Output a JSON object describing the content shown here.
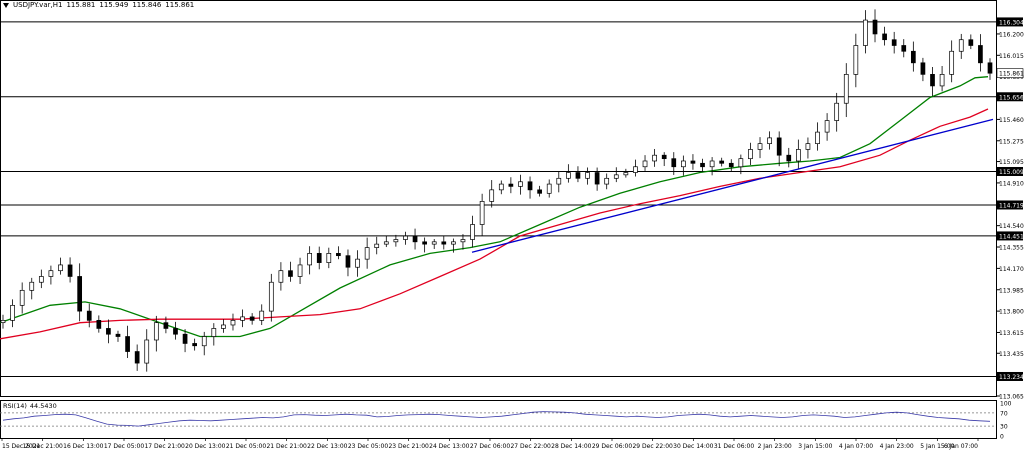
{
  "header": {
    "symbol": "USDJPY.var,H1",
    "open": "115.881",
    "high": "115.949",
    "low": "115.846",
    "close": "115.861"
  },
  "rsi_header": {
    "label": "RSI(14)",
    "value": "44.5430"
  },
  "colors": {
    "ma_fast": "#008000",
    "ma_slow": "#e00020",
    "trendline": "#0000cc",
    "rsi": "#3a3aa8",
    "candle": "#000000",
    "level_line": "#000000",
    "highlight_label_bg": "#000000",
    "highlight_label_fg": "#ffffff"
  },
  "chart_data": {
    "type": "candlestick",
    "symbol": "USDJPY.var,H1",
    "y_ticks": [
      "116.304",
      "116.200",
      "116.015",
      "115.830",
      "115.656",
      "115.460",
      "115.275",
      "115.095",
      "115.009",
      "114.910",
      "114.719",
      "114.540",
      "114.451",
      "114.355",
      "114.170",
      "113.985",
      "113.800",
      "113.615",
      "113.435",
      "113.234",
      "113.065"
    ],
    "ylim": [
      113.065,
      116.39
    ],
    "x_ticks": [
      "15 Dec 2021",
      "15 Dec 21:00",
      "16 Dec 13:00",
      "17 Dec 05:00",
      "17 Dec 21:00",
      "20 Dec 13:00",
      "21 Dec 05:00",
      "21 Dec 21:00",
      "22 Dec 13:00",
      "23 Dec 05:00",
      "23 Dec 21:00",
      "24 Dec 13:00",
      "27 Dec 06:00",
      "27 Dec 22:00",
      "28 Dec 14:00",
      "29 Dec 06:00",
      "29 Dec 22:00",
      "30 Dec 14:00",
      "31 Dec 06:00",
      "2 Jan 23:00",
      "3 Jan 15:00",
      "4 Jan 07:00",
      "4 Jan 23:00",
      "5 Jan 15:00",
      "6 Jan 07:00"
    ],
    "horizontal_levels": [
      116.304,
      115.656,
      115.009,
      114.719,
      114.451,
      113.234
    ],
    "current_price": 115.861,
    "close_path": [
      113.72,
      113.85,
      113.98,
      114.05,
      114.1,
      114.15,
      114.2,
      114.1,
      113.8,
      113.72,
      113.65,
      113.6,
      113.58,
      113.45,
      113.35,
      113.55,
      113.7,
      113.65,
      113.6,
      113.52,
      113.5,
      113.58,
      113.65,
      113.68,
      113.72,
      113.75,
      113.72,
      113.8,
      114.05,
      114.15,
      114.1,
      114.2,
      114.3,
      114.22,
      114.3,
      114.28,
      114.18,
      114.25,
      114.35,
      114.38,
      114.4,
      114.42,
      114.45,
      114.4,
      114.38,
      114.4,
      114.38,
      114.4,
      114.42,
      114.55,
      114.75,
      114.85,
      114.9,
      114.88,
      114.92,
      114.85,
      114.82,
      114.9,
      114.95,
      115.0,
      114.95,
      115.0,
      114.9,
      114.95,
      114.98,
      115.0,
      115.05,
      115.1,
      115.15,
      115.12,
      115.05,
      115.1,
      115.08,
      115.05,
      115.1,
      115.08,
      115.05,
      115.12,
      115.2,
      115.25,
      115.3,
      115.15,
      115.1,
      115.2,
      115.25,
      115.35,
      115.45,
      115.6,
      115.85,
      116.1,
      116.32,
      116.2,
      116.15,
      116.1,
      116.05,
      115.95,
      115.85,
      115.75,
      115.85,
      116.05,
      116.15,
      116.1,
      115.95,
      115.86
    ],
    "series": [
      {
        "name": "MA",
        "points": [
          [
            0,
            113.7
          ],
          [
            50,
            113.85
          ],
          [
            85,
            113.88
          ],
          [
            120,
            113.82
          ],
          [
            160,
            113.7
          ],
          [
            200,
            113.58
          ],
          [
            240,
            113.58
          ],
          [
            270,
            113.65
          ],
          [
            300,
            113.8
          ],
          [
            340,
            114.0
          ],
          [
            390,
            114.2
          ],
          [
            430,
            114.3
          ],
          [
            470,
            114.35
          ],
          [
            500,
            114.4
          ],
          [
            540,
            114.55
          ],
          [
            580,
            114.7
          ],
          [
            620,
            114.82
          ],
          [
            660,
            114.92
          ],
          [
            700,
            115.0
          ],
          [
            740,
            115.05
          ],
          [
            780,
            115.08
          ],
          [
            810,
            115.1
          ],
          [
            840,
            115.13
          ],
          [
            870,
            115.25
          ],
          [
            900,
            115.45
          ],
          [
            930,
            115.65
          ],
          [
            960,
            115.75
          ],
          [
            975,
            115.82
          ],
          [
            988,
            115.83
          ]
        ]
      },
      {
        "name": "MA",
        "points": [
          [
            0,
            113.56
          ],
          [
            40,
            113.62
          ],
          [
            80,
            113.7
          ],
          [
            120,
            113.72
          ],
          [
            160,
            113.73
          ],
          [
            200,
            113.73
          ],
          [
            240,
            113.73
          ],
          [
            280,
            113.75
          ],
          [
            320,
            113.77
          ],
          [
            360,
            113.82
          ],
          [
            400,
            113.95
          ],
          [
            440,
            114.1
          ],
          [
            480,
            114.25
          ],
          [
            520,
            114.45
          ],
          [
            560,
            114.55
          ],
          [
            600,
            114.65
          ],
          [
            640,
            114.73
          ],
          [
            680,
            114.8
          ],
          [
            720,
            114.88
          ],
          [
            760,
            114.95
          ],
          [
            800,
            115.0
          ],
          [
            840,
            115.05
          ],
          [
            880,
            115.15
          ],
          [
            910,
            115.28
          ],
          [
            940,
            115.4
          ],
          [
            970,
            115.48
          ],
          [
            988,
            115.55
          ]
        ]
      },
      {
        "name": "Trendline",
        "points": [
          [
            472,
            114.31
          ],
          [
            993,
            115.46
          ]
        ]
      }
    ],
    "rsi": {
      "label": "RSI(14)",
      "value": 44.543,
      "levels": [
        100,
        70,
        30,
        0
      ],
      "values": [
        48,
        52,
        55,
        60,
        62,
        65,
        66,
        64,
        55,
        45,
        36,
        33,
        32,
        30,
        34,
        38,
        42,
        46,
        48,
        47,
        46,
        48,
        50,
        52,
        54,
        56,
        55,
        58,
        64,
        65,
        63,
        62,
        64,
        66,
        64,
        63,
        58,
        59,
        62,
        64,
        65,
        66,
        65,
        62,
        60,
        58,
        56,
        58,
        60,
        64,
        68,
        72,
        74,
        73,
        72,
        70,
        66,
        64,
        62,
        60,
        58,
        60,
        58,
        56,
        58,
        62,
        64,
        66,
        64,
        60,
        58,
        60,
        62,
        60,
        58,
        56,
        58,
        62,
        64,
        62,
        60,
        56,
        58,
        62,
        66,
        70,
        72,
        70,
        65,
        60,
        56,
        54,
        52,
        48,
        46,
        44.5
      ]
    }
  }
}
